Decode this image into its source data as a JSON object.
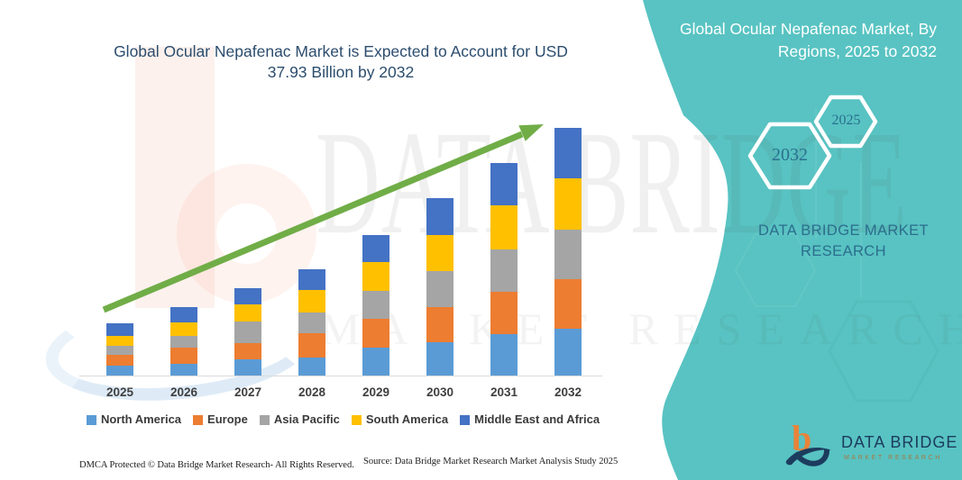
{
  "header": {
    "title_line1": "Global Ocular Nepafenac Market is Expected to Account for USD",
    "title_line2": "37.93 Billion by 2032"
  },
  "panel": {
    "heading_line1": "Global Ocular Nepafenac Market, By",
    "heading_line2": "Regions, 2025 to 2032",
    "hexagons": [
      {
        "label": "2032"
      },
      {
        "label": "2025"
      }
    ],
    "brand_text_line1": "DATA BRIDGE MARKET",
    "brand_text_line2": "RESEARCH",
    "colors": {
      "background": "#58C3C2",
      "heading_text": "#FFFFFF",
      "hexagon_text": "#2A7090",
      "brand_text": "#2C6E8E"
    }
  },
  "watermark": {
    "text_primary": "DATA BRIDGE",
    "text_secondary": "MARKET RESEARCH"
  },
  "chart_data": {
    "type": "bar",
    "stacked": true,
    "title": "Global Ocular Nepafenac Market is Expected to Account for USD 37.93 Billion by 2032",
    "unit": "USD Billion",
    "categories": [
      "2025",
      "2026",
      "2027",
      "2028",
      "2029",
      "2030",
      "2031",
      "2032"
    ],
    "series": [
      {
        "name": "North America",
        "color": "#5B9BD5",
        "values": [
          1.7,
          1.92,
          2.61,
          2.93,
          4.36,
          5.28,
          6.51,
          7.35
        ]
      },
      {
        "name": "Europe",
        "color": "#ED7D31",
        "values": [
          1.6,
          2.47,
          2.51,
          3.67,
          4.44,
          5.36,
          6.4,
          7.56
        ]
      },
      {
        "name": "Asia Pacific",
        "color": "#A5A5A5",
        "values": [
          1.37,
          1.83,
          3.2,
          3.2,
          4.26,
          5.5,
          6.46,
          7.56
        ]
      },
      {
        "name": "South America",
        "color": "#FFC000",
        "values": [
          1.51,
          1.96,
          2.61,
          3.34,
          4.45,
          5.4,
          6.73,
          7.78
        ]
      },
      {
        "name": "Middle East and Africa",
        "color": "#4472C4",
        "values": [
          1.92,
          2.43,
          2.53,
          3.21,
          4.03,
          5.63,
          6.42,
          7.68
        ]
      }
    ],
    "totals": [
      8.1,
      10.61,
      13.46,
      16.35,
      21.54,
      27.17,
      32.52,
      37.93
    ],
    "y_axis_visible": false,
    "grid": false,
    "legend_position": "bottom",
    "annotations": [
      "upward trend arrow"
    ],
    "trend_arrow_color": "#70AD47",
    "axis": {
      "baseline_color": "#D9D9D9",
      "label_color": "#3F3F3F"
    }
  },
  "footer": {
    "dmca_text": "DMCA Protected © Data Bridge Market Research-  All Rights Reserved.",
    "source_text": "Source: Data Bridge Market Research  Market Analysis Study 2025"
  },
  "logo": {
    "name_text": "DATA BRIDGE",
    "subtitle_text": "MARKET RESEARCH"
  }
}
